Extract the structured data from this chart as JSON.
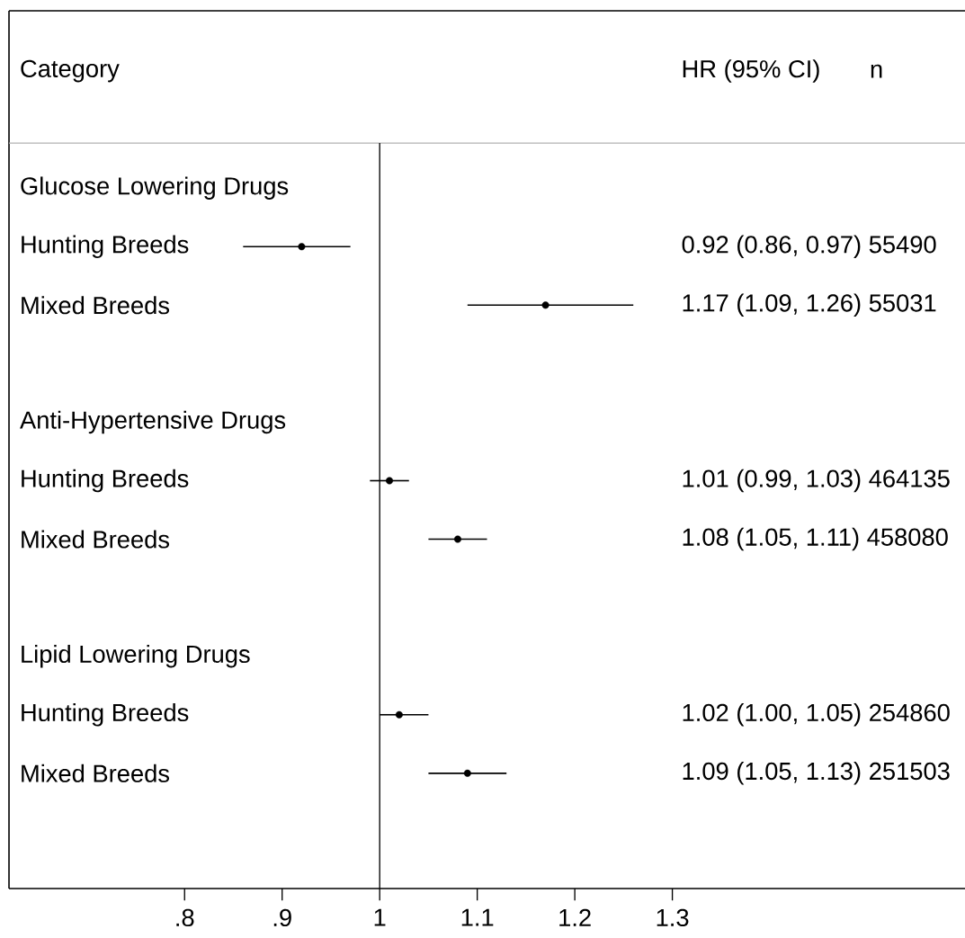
{
  "chart_data": {
    "type": "scatter",
    "orientation": "horizontal",
    "categories": [
      "Glucose Lowering Drugs",
      "Hunting Breeds",
      "Mixed Breeds",
      null,
      "Anti-Hypertensive Drugs",
      "Hunting Breeds",
      "Mixed Breeds",
      null,
      "Lipid Lowering Drugs",
      "Hunting Breeds",
      "Mixed Breeds"
    ],
    "values": [
      null,
      0.92,
      1.17,
      null,
      null,
      1.01,
      1.08,
      null,
      null,
      1.02,
      1.09
    ],
    "errors": [
      null,
      [
        0.86,
        0.97
      ],
      [
        1.09,
        1.26
      ],
      null,
      null,
      [
        0.99,
        1.03
      ],
      [
        1.05,
        1.11
      ],
      null,
      null,
      [
        1.0,
        1.05
      ],
      [
        1.05,
        1.13
      ]
    ],
    "color": "#000000",
    "marker": "circle",
    "xlim": [
      0.62,
      1.6
    ],
    "xticks": [
      {
        "value": 0.8,
        "label": ".8"
      },
      {
        "value": 0.9,
        "label": ".9"
      },
      1,
      1.1,
      1.2,
      1.3
    ],
    "ref_lines": [
      {
        "axis": "x",
        "value": 1
      }
    ],
    "annotations": [
      "Category",
      "HR (95% CI)",
      "n",
      "0.92 (0.86, 0.97) 55490",
      "1.17 (1.09, 1.26) 55031",
      "1.01 (0.99, 1.03) 464135",
      "1.08 (1.05, 1.11) 458080",
      "1.02 (1.00, 1.05) 254860",
      "1.09 (1.05, 1.13) 251503"
    ]
  }
}
